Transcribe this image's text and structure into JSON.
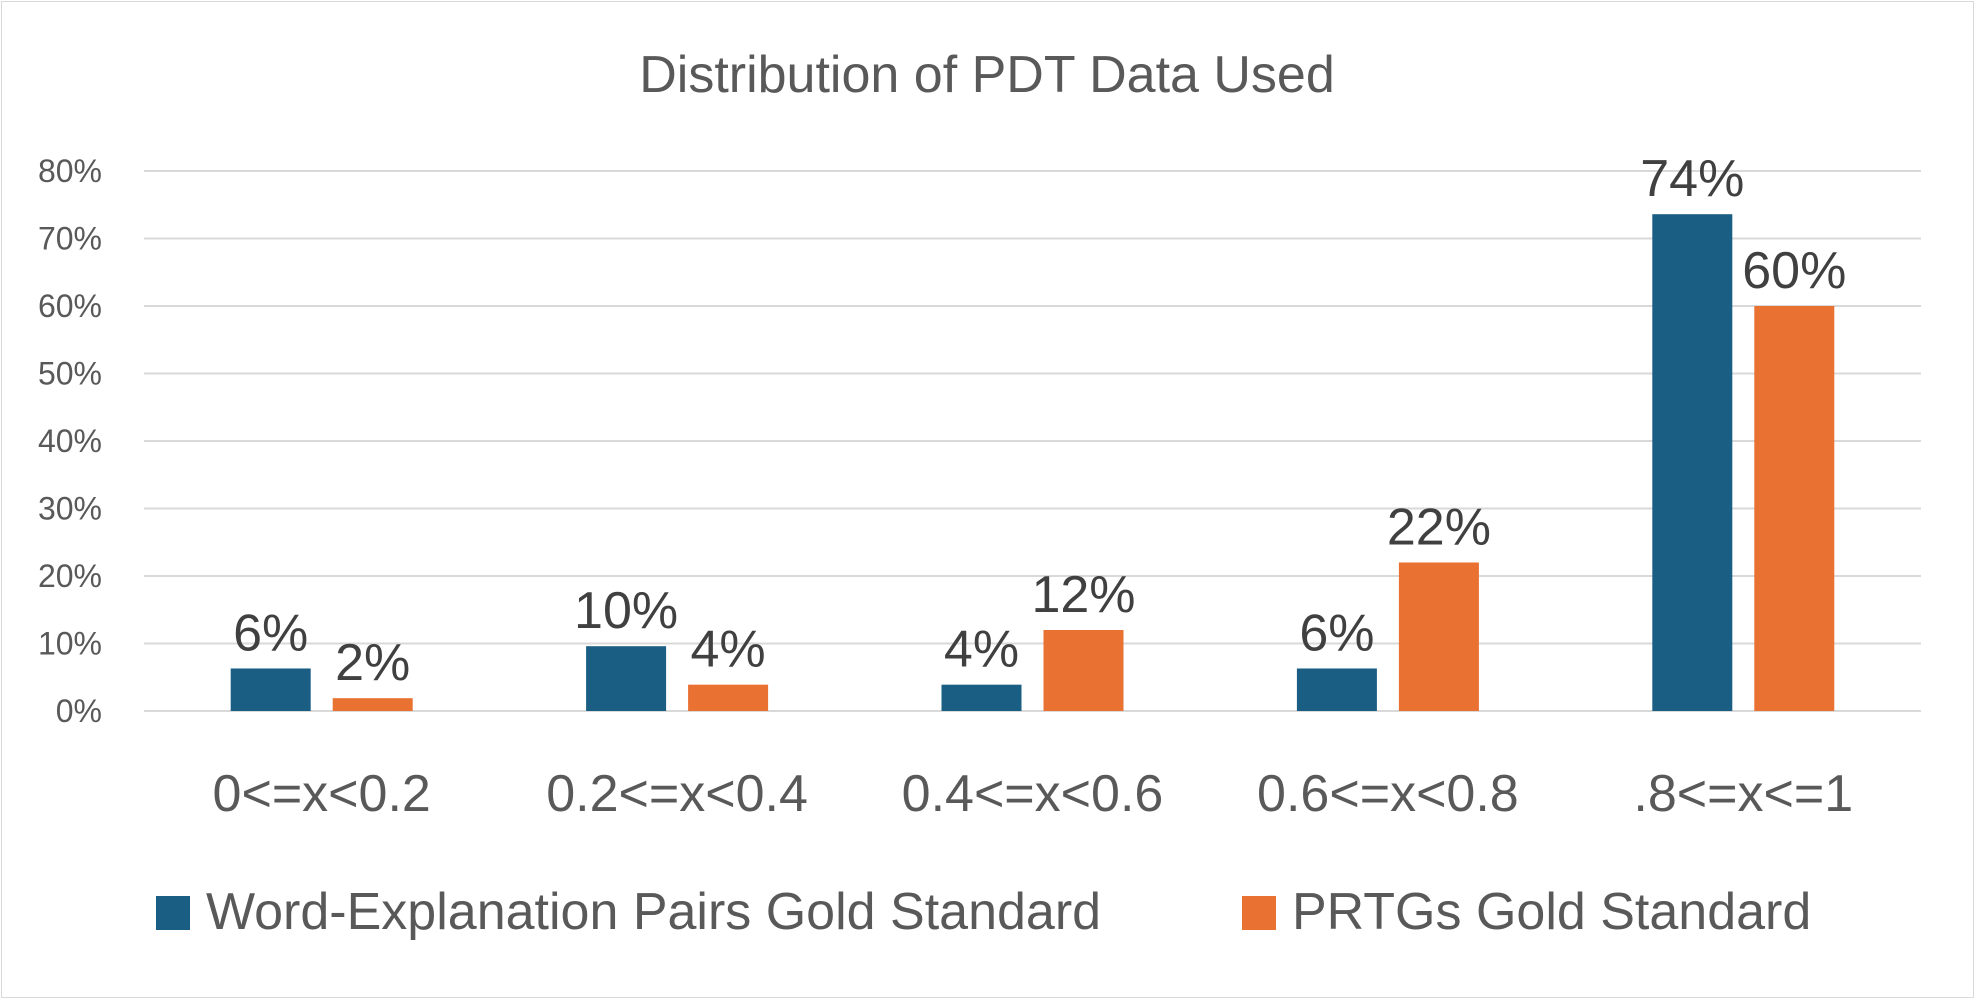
{
  "chart_data": {
    "type": "bar",
    "title": "Distribution of PDT Data Used",
    "xlabel": "",
    "ylabel": "",
    "ylim": [
      0,
      80
    ],
    "yticks": [
      "0%",
      "10%",
      "20%",
      "30%",
      "40%",
      "50%",
      "60%",
      "70%",
      "80%"
    ],
    "grid": true,
    "legend_position": "bottom",
    "categories": [
      "0<=x<0.2",
      "0.2<=x<0.4",
      "0.4<=x<0.6",
      "0.6<=x<0.8",
      ".8<=x<=1"
    ],
    "series": [
      {
        "name": "Word-Explanation Pairs Gold Standard",
        "color": "#1a5e84",
        "values": [
          6.3,
          9.6,
          3.9,
          6.3,
          73.6
        ],
        "labels": [
          "6%",
          "10%",
          "4%",
          "6%",
          "74%"
        ]
      },
      {
        "name": "PRTGs Gold Standard",
        "color": "#e97132",
        "values": [
          1.9,
          3.9,
          12.0,
          22.0,
          60.0
        ],
        "labels": [
          "2%",
          "4%",
          "12%",
          "22%",
          "60%"
        ]
      }
    ]
  }
}
